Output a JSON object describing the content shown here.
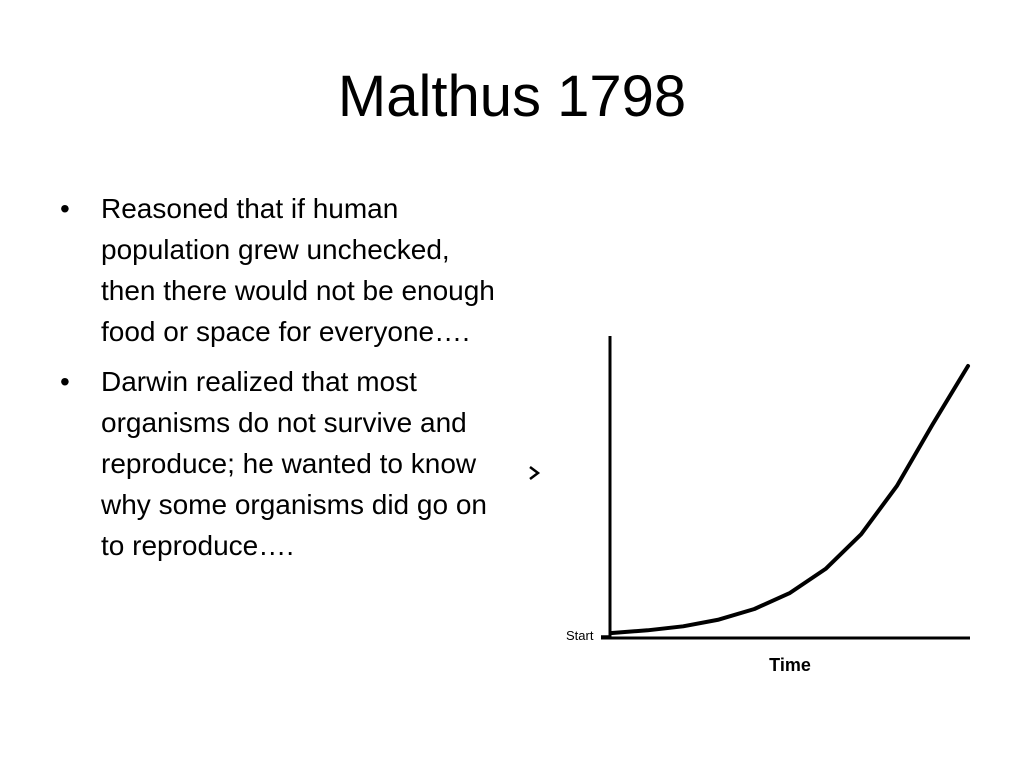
{
  "slide": {
    "title": "Malthus 1798",
    "bullets": [
      {
        "marker": "•",
        "text": "Reasoned that if human population grew unchecked, then there would not be enough food or space for everyone…."
      },
      {
        "marker": "•",
        "text": "Darwin realized that most organisms do not survive and reproduce; he wanted to know why some organisms did go on to reproduce…."
      }
    ]
  },
  "chart_data": {
    "type": "line",
    "title": "",
    "xlabel": "Time",
    "ylabel": "",
    "x_start_label": "Start",
    "grid": false,
    "series": [
      {
        "x": [
          0,
          0.1,
          0.2,
          0.3,
          0.4,
          0.5,
          0.6,
          0.7,
          0.8,
          0.9,
          1.0
        ],
        "values": [
          0,
          0.01,
          0.025,
          0.05,
          0.09,
          0.15,
          0.24,
          0.37,
          0.55,
          0.78,
          1.0
        ]
      }
    ],
    "colors": {
      "line": "#000000",
      "axis": "#000000"
    }
  }
}
